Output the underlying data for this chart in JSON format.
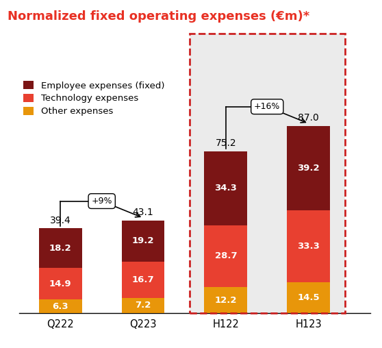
{
  "title": "Normalized fixed operating expenses (€m)*",
  "title_color": "#e83124",
  "categories": [
    "Q222",
    "Q223",
    "H122",
    "H123"
  ],
  "other": [
    6.3,
    7.2,
    12.2,
    14.5
  ],
  "technology": [
    14.9,
    16.7,
    28.7,
    33.3
  ],
  "employee": [
    18.2,
    19.2,
    34.3,
    39.2
  ],
  "totals": [
    39.4,
    43.1,
    75.2,
    87.0
  ],
  "color_employee": "#7b1515",
  "color_technology": "#e84030",
  "color_other": "#e8960a",
  "legend_labels": [
    "Employee expenses (fixed)",
    "Technology expenses",
    "Other expenses"
  ],
  "annotation_q": "+9%",
  "annotation_h": "+16%",
  "highlight_bg": "#ebebeb",
  "highlight_border": "#cc2222",
  "bar_width": 0.52,
  "ylim_max": 110
}
